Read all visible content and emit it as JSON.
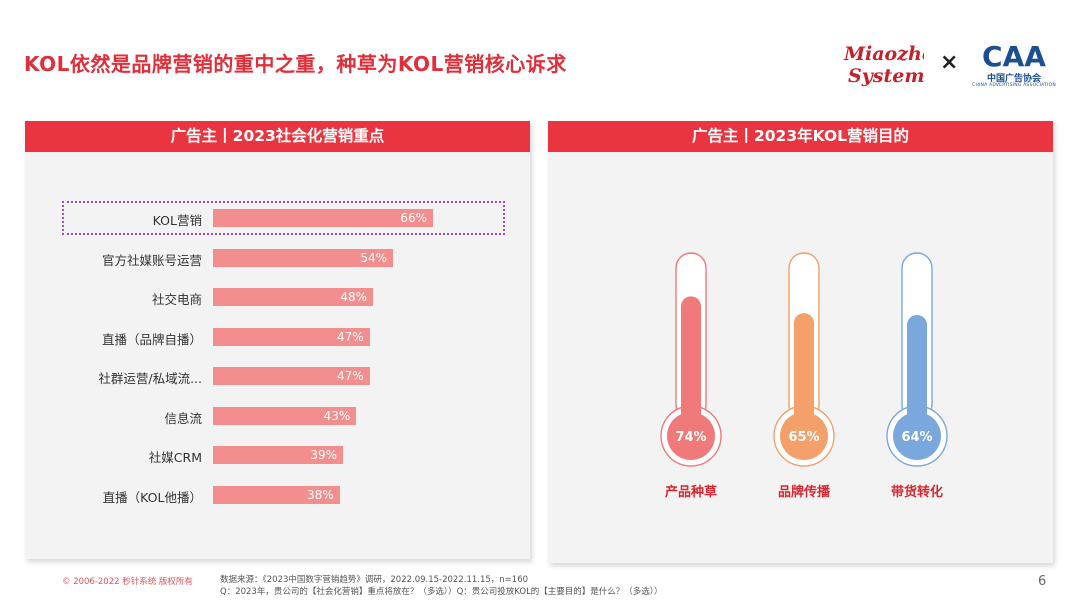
{
  "page": {
    "title": "KOL依然是品牌营销的重中之重，种草为KOL营销核心诉求",
    "page_number": "6"
  },
  "logos": {
    "miaozhen_line1": "Miaozhen",
    "miaozhen_line2": "Systems",
    "times_sign": "×",
    "caa_mark": "CAA",
    "caa_name_cn": "中国广告协会",
    "caa_name_en": "CHINA ADVERTISING ASSOCIATION"
  },
  "footer": {
    "copyright": "© 2006-2022 秒针系统 版权所有",
    "source_line1": "数据来源：《2023中国数字营销趋势》调研，2022.09.15-2022.11.15，n=160",
    "source_line2": "Q：2023年，贵公司的【社会化营销】重点将放在？（多选））Q：贵公司投放KOL的【主要目的】是什么？（多选））"
  },
  "colors": {
    "accent_red": "#e8353f",
    "bar_pink": "#f38e8e",
    "thermo_red": "#f07a7a",
    "thermo_orange": "#f3a06a",
    "thermo_blue": "#7aa8de",
    "highlight_purple": "#a44bc3"
  },
  "chart_data": [
    {
      "type": "bar",
      "orientation": "horizontal",
      "title": "广告主丨2023社会化营销重点",
      "categories": [
        "KOL营销",
        "官方社媒账号运营",
        "社交电商",
        "直播（品牌自播）",
        "社群运营/私域流...",
        "信息流",
        "社媒CRM",
        "直播（KOL他播）"
      ],
      "values": [
        66,
        54,
        48,
        47,
        47,
        43,
        39,
        38
      ],
      "value_labels": [
        "66%",
        "54%",
        "48%",
        "47%",
        "47%",
        "43%",
        "39%",
        "38%"
      ],
      "unit": "%",
      "xlim": [
        0,
        100
      ],
      "highlighted_category": "KOL营销",
      "grid": false
    },
    {
      "type": "bar",
      "style": "thermometer",
      "title": "广告主丨2023年KOL营销目的",
      "categories": [
        "产品种草",
        "品牌传播",
        "带货转化"
      ],
      "values": [
        74,
        65,
        64
      ],
      "value_labels": [
        "74%",
        "65%",
        "64%"
      ],
      "unit": "%",
      "ylim": [
        0,
        100
      ],
      "colors": [
        "#f07a7a",
        "#f3a06a",
        "#7aa8de"
      ]
    }
  ]
}
